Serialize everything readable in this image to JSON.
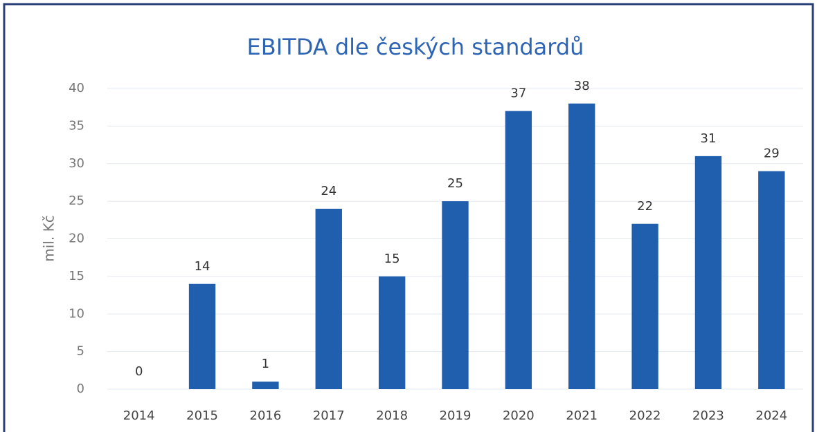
{
  "chart_data": {
    "type": "bar",
    "title": "EBITDA dle českých standardů",
    "y_label": "mil. Kč",
    "categories": [
      "2014",
      "2015",
      "2016",
      "2017",
      "2018",
      "2019",
      "2020",
      "2021",
      "2022",
      "2023",
      "2024"
    ],
    "values": [
      0,
      14,
      1,
      24,
      15,
      25,
      37,
      38,
      22,
      31,
      29
    ],
    "color": "#1f5fad",
    "ylim": [
      0,
      40
    ],
    "yticks": [
      0,
      5,
      10,
      15,
      20,
      25,
      30,
      35,
      40
    ],
    "grid": true
  }
}
